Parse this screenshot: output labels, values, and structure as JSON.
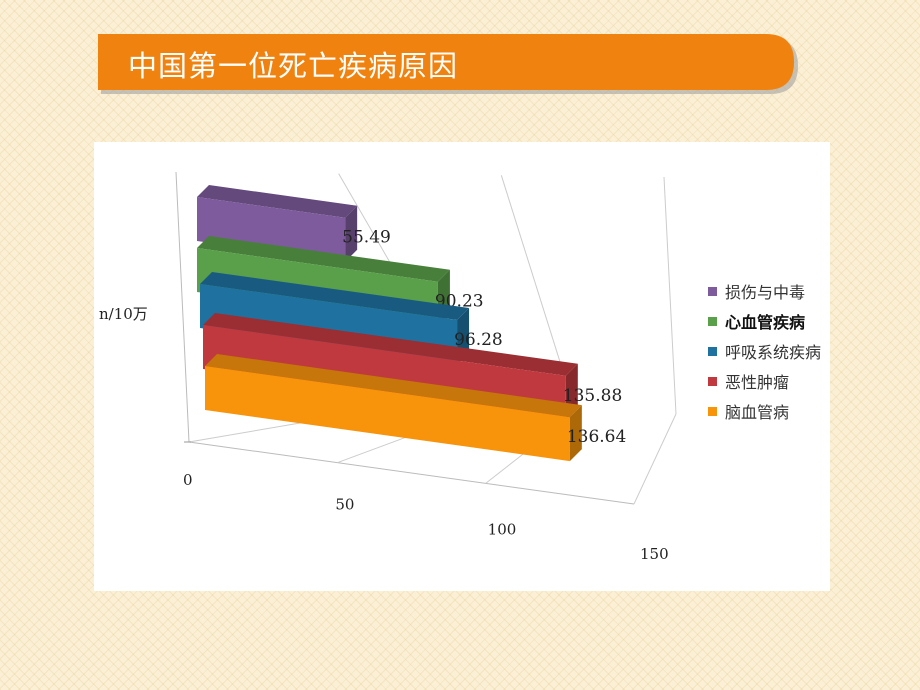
{
  "title": "中国第一位死亡疾病原因",
  "colors": {
    "title_bar": "#f0820f",
    "series": [
      "#7d5b9c",
      "#5aa04a",
      "#1f72a0",
      "#c0393f",
      "#f7940c"
    ]
  },
  "chart_data": {
    "type": "bar",
    "orientation": "horizontal",
    "style": "3d",
    "ylabel": "n/10万",
    "xlim": [
      0,
      150
    ],
    "ticks": [
      "0",
      "50",
      "100",
      "150"
    ],
    "tick_values": [
      0,
      50,
      100,
      150
    ],
    "grid": true,
    "legend_position": "right",
    "categories": [
      "损伤与中毒",
      "心血管疾病",
      "呼吸系统疾病",
      "恶性肿瘤",
      "脑血管病"
    ],
    "values": [
      55.49,
      90.23,
      96.28,
      135.88,
      136.64
    ],
    "value_labels": [
      "55.49",
      "90.23",
      "96.28",
      "135.88",
      "136.64"
    ],
    "legend": [
      {
        "label": "损伤与中毒",
        "bold": false
      },
      {
        "label": "心血管疾病",
        "bold": true
      },
      {
        "label": "呼吸系统疾病",
        "bold": false
      },
      {
        "label": "恶性肿瘤",
        "bold": false
      },
      {
        "label": "脑血管病",
        "bold": false
      }
    ]
  }
}
